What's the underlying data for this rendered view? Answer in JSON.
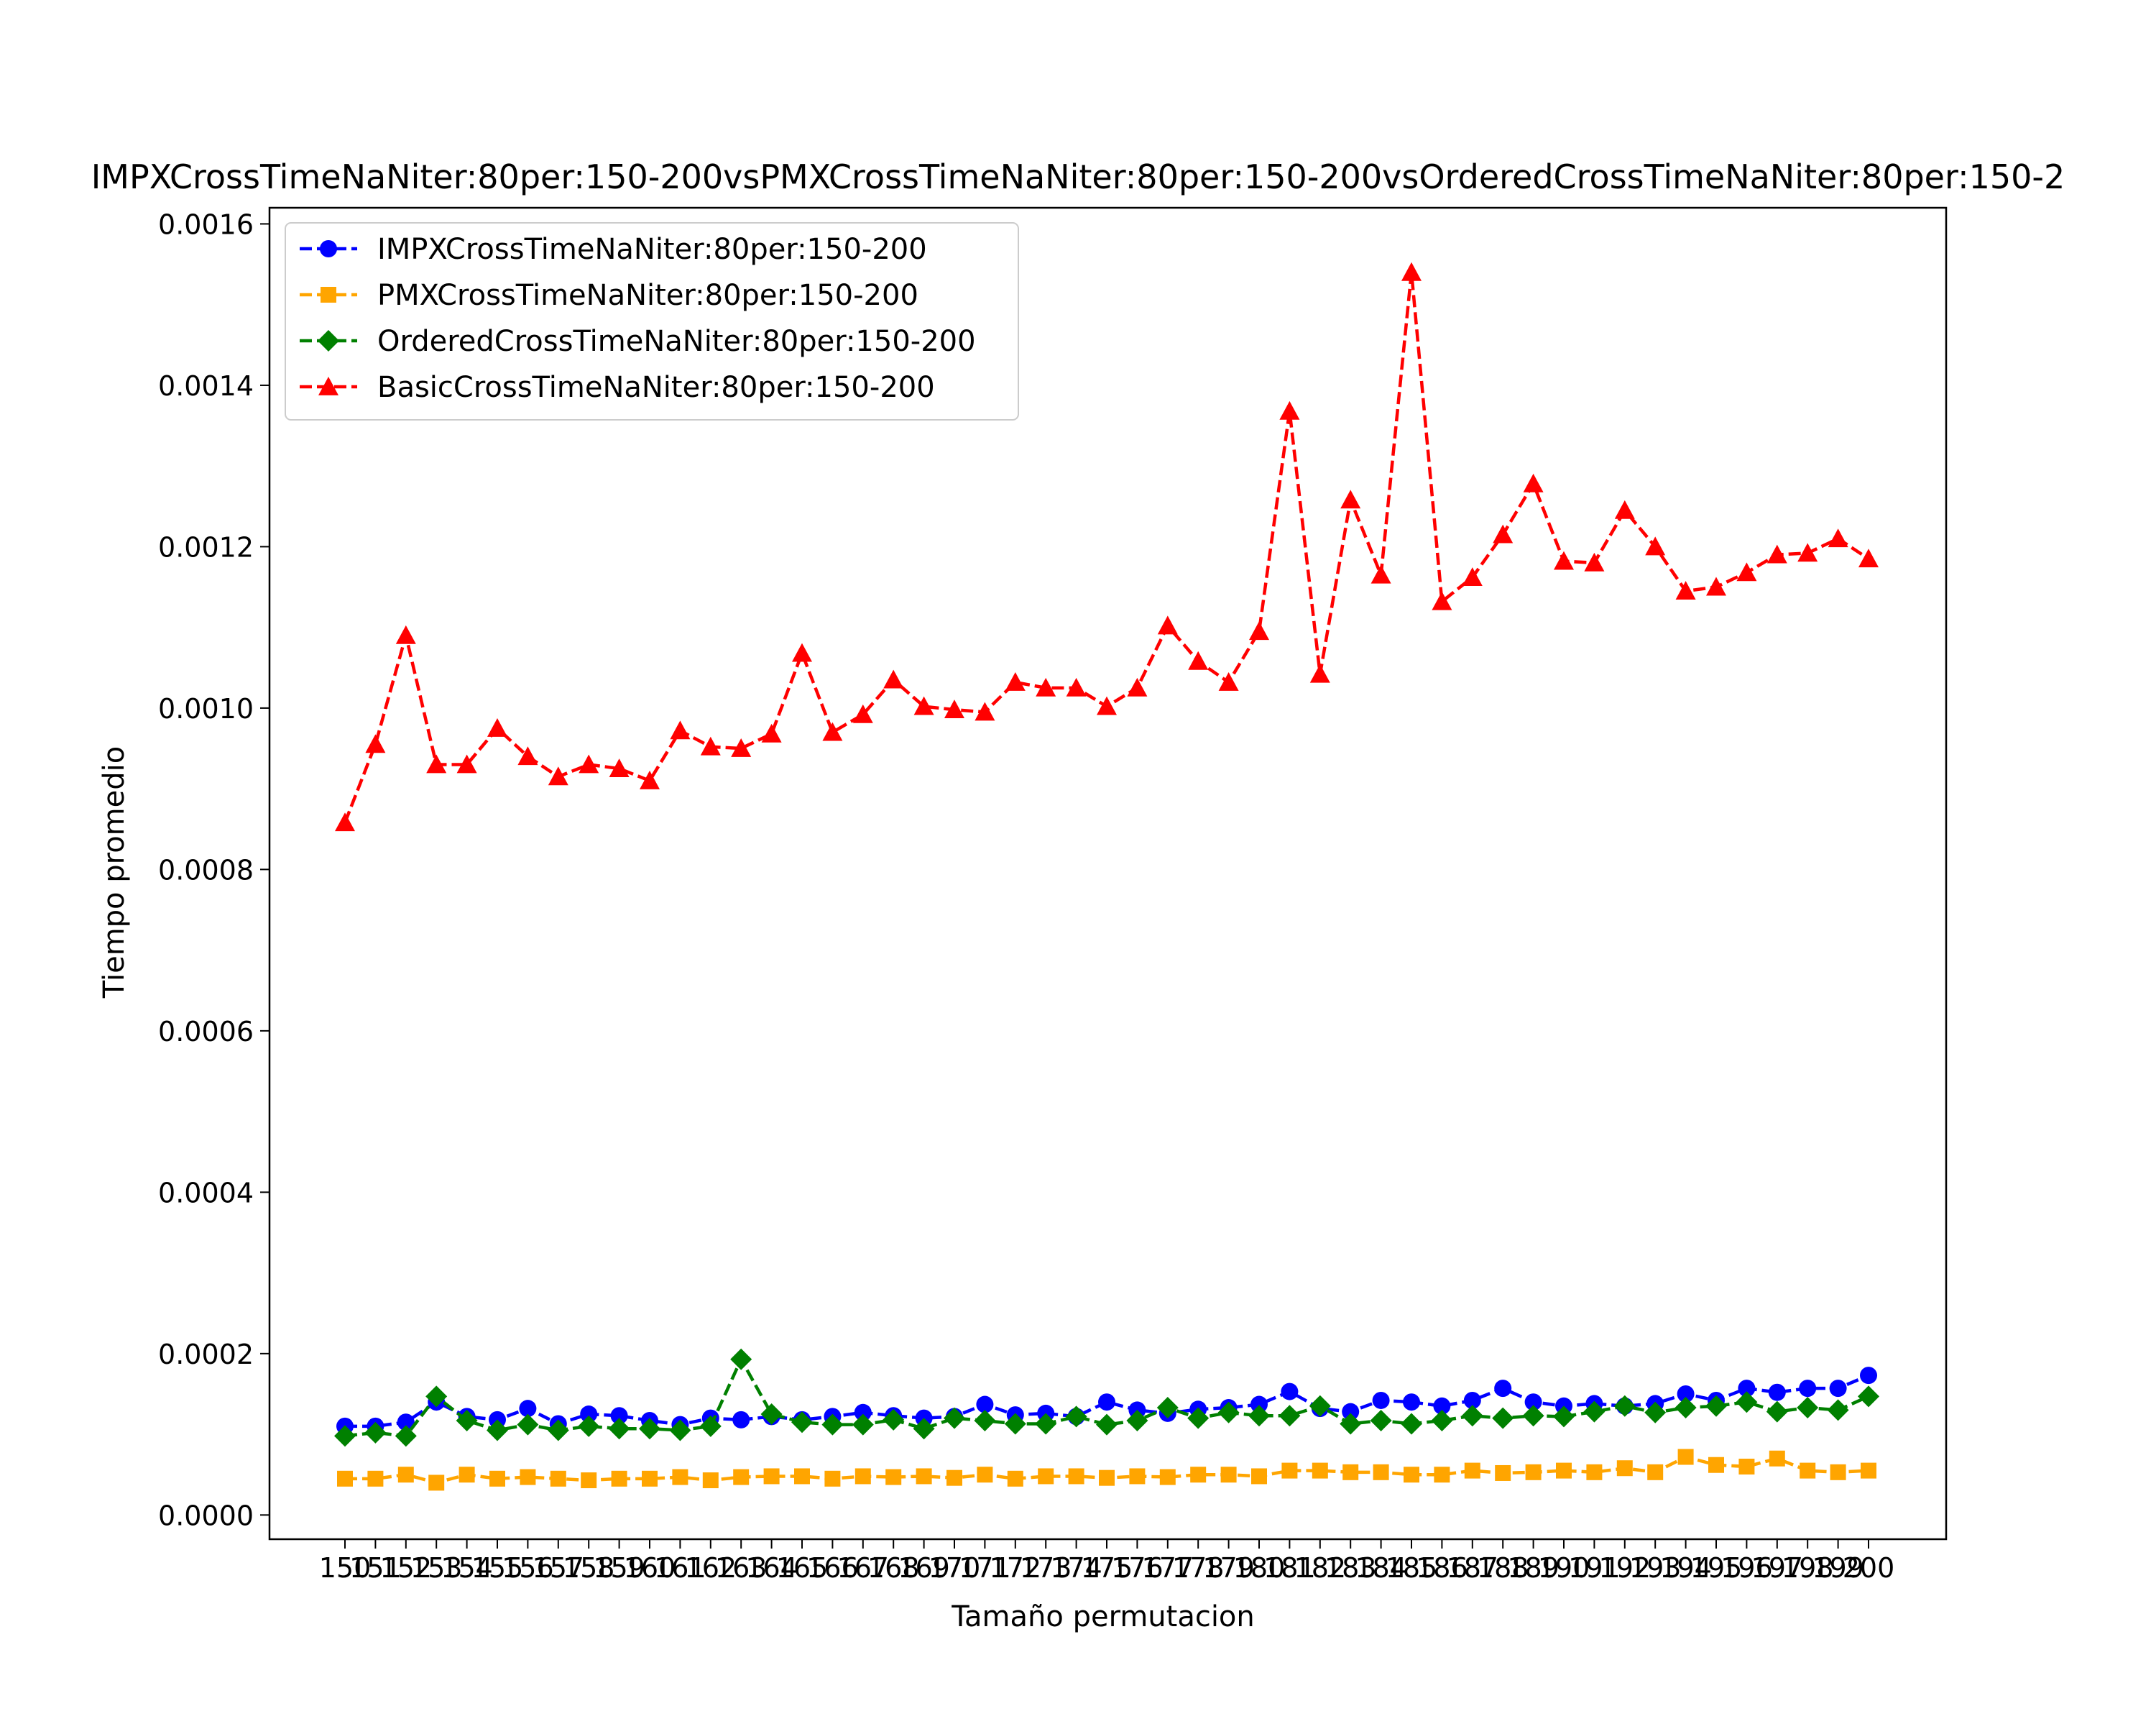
{
  "chart_data": {
    "type": "line",
    "title": "IMPXCrossTimeNaNiter:80per:150-200vsPMXCrossTimeNaNiter:80per:150-200vsOrderedCrossTimeNaNiter:80per:150-2",
    "xlabel": "Tamaño permutacion",
    "ylabel": "Tiempo promedio",
    "ylim": [
      -3e-05,
      0.00162
    ],
    "yticks": [
      "0.0000",
      "0.0002",
      "0.0004",
      "0.0006",
      "0.0008",
      "0.0010",
      "0.0012",
      "0.0014",
      "0.0016"
    ],
    "ytick_values": [
      0,
      0.0002,
      0.0004,
      0.0006,
      0.0008,
      0.001,
      0.0012,
      0.0014,
      0.0016
    ],
    "legend_position": "top-left",
    "grid": false,
    "categories": [
      "150",
      "151",
      "152",
      "153",
      "154",
      "155",
      "156",
      "157",
      "158",
      "159",
      "160",
      "161",
      "162",
      "163",
      "164",
      "165",
      "166",
      "167",
      "168",
      "169",
      "170",
      "171",
      "172",
      "173",
      "174",
      "175",
      "176",
      "177",
      "178",
      "179",
      "180",
      "181",
      "182",
      "183",
      "184",
      "185",
      "186",
      "187",
      "188",
      "189",
      "190",
      "191",
      "192",
      "193",
      "194",
      "195",
      "196",
      "197",
      "198",
      "199",
      "200"
    ],
    "series": [
      {
        "name": "IMPXCrossTimeNaNiter:80per:150-200",
        "color": "#0000ff",
        "marker": "circle",
        "values": [
          0.00011,
          0.00011,
          0.000115,
          0.00014,
          0.000122,
          0.000118,
          0.000132,
          0.000113,
          0.000125,
          0.000123,
          0.000117,
          0.000112,
          0.00012,
          0.000118,
          0.000122,
          0.000118,
          0.000122,
          0.000127,
          0.000123,
          0.00012,
          0.000122,
          0.000137,
          0.000124,
          0.000126,
          0.000122,
          0.00014,
          0.00013,
          0.000126,
          0.000131,
          0.000133,
          0.000137,
          0.000153,
          0.000132,
          0.000128,
          0.000142,
          0.00014,
          0.000135,
          0.000142,
          0.000157,
          0.00014,
          0.000135,
          0.000138,
          0.000135,
          0.000138,
          0.00015,
          0.000142,
          0.000157,
          0.000152,
          0.000157,
          0.000157,
          0.000173
        ]
      },
      {
        "name": "PMXCrossTimeNaNiter:80per:150-200",
        "color": "#ffa500",
        "marker": "square",
        "values": [
          4.5e-05,
          4.5e-05,
          5e-05,
          4e-05,
          5e-05,
          4.5e-05,
          4.7e-05,
          4.5e-05,
          4.3e-05,
          4.5e-05,
          4.5e-05,
          4.7e-05,
          4.3e-05,
          4.7e-05,
          4.8e-05,
          4.8e-05,
          4.5e-05,
          4.8e-05,
          4.7e-05,
          4.8e-05,
          4.6e-05,
          5e-05,
          4.5e-05,
          4.8e-05,
          4.8e-05,
          4.6e-05,
          4.8e-05,
          4.7e-05,
          5e-05,
          5e-05,
          4.8e-05,
          5.5e-05,
          5.5e-05,
          5.3e-05,
          5.3e-05,
          5e-05,
          5e-05,
          5.5e-05,
          5.2e-05,
          5.3e-05,
          5.5e-05,
          5.3e-05,
          5.8e-05,
          5.3e-05,
          7.2e-05,
          6.2e-05,
          6e-05,
          7e-05,
          5.5e-05,
          5.3e-05,
          5.5e-05
        ]
      },
      {
        "name": "OrderedCrossTimeNaNiter:80per:150-200",
        "color": "#008000",
        "marker": "diamond",
        "values": [
          9.8e-05,
          0.000102,
          9.8e-05,
          0.000147,
          0.000117,
          0.000105,
          0.000112,
          0.000105,
          0.00011,
          0.000107,
          0.000107,
          0.000105,
          0.00011,
          0.000193,
          0.000125,
          0.000115,
          0.000112,
          0.000112,
          0.000118,
          0.000107,
          0.00012,
          0.000117,
          0.000113,
          0.000113,
          0.000122,
          0.000112,
          0.000117,
          0.000133,
          0.00012,
          0.000127,
          0.000123,
          0.000123,
          0.000135,
          0.000113,
          0.000117,
          0.000113,
          0.000117,
          0.000123,
          0.00012,
          0.000123,
          0.000122,
          0.000128,
          0.000135,
          0.000127,
          0.000133,
          0.000135,
          0.00014,
          0.000128,
          0.000133,
          0.00013,
          0.000147
        ]
      },
      {
        "name": "BasicCrossTimeNaNiter:80per:150-200",
        "color": "#ff0000",
        "marker": "triangle",
        "values": [
          0.000858,
          0.000955,
          0.00109,
          0.00093,
          0.00093,
          0.000975,
          0.00094,
          0.000915,
          0.00093,
          0.000925,
          0.00091,
          0.000972,
          0.000952,
          0.00095,
          0.000968,
          0.001068,
          0.00097,
          0.000992,
          0.001035,
          0.001002,
          0.000998,
          0.000995,
          0.001032,
          0.001025,
          0.001025,
          0.001002,
          0.001025,
          0.001102,
          0.001058,
          0.001032,
          0.001095,
          0.001368,
          0.001042,
          0.001258,
          0.001165,
          0.00154,
          0.001132,
          0.001162,
          0.001215,
          0.001278,
          0.001182,
          0.00118,
          0.001245,
          0.0012,
          0.001145,
          0.00115,
          0.001168,
          0.00119,
          0.001192,
          0.00121,
          0.001185
        ]
      }
    ]
  }
}
